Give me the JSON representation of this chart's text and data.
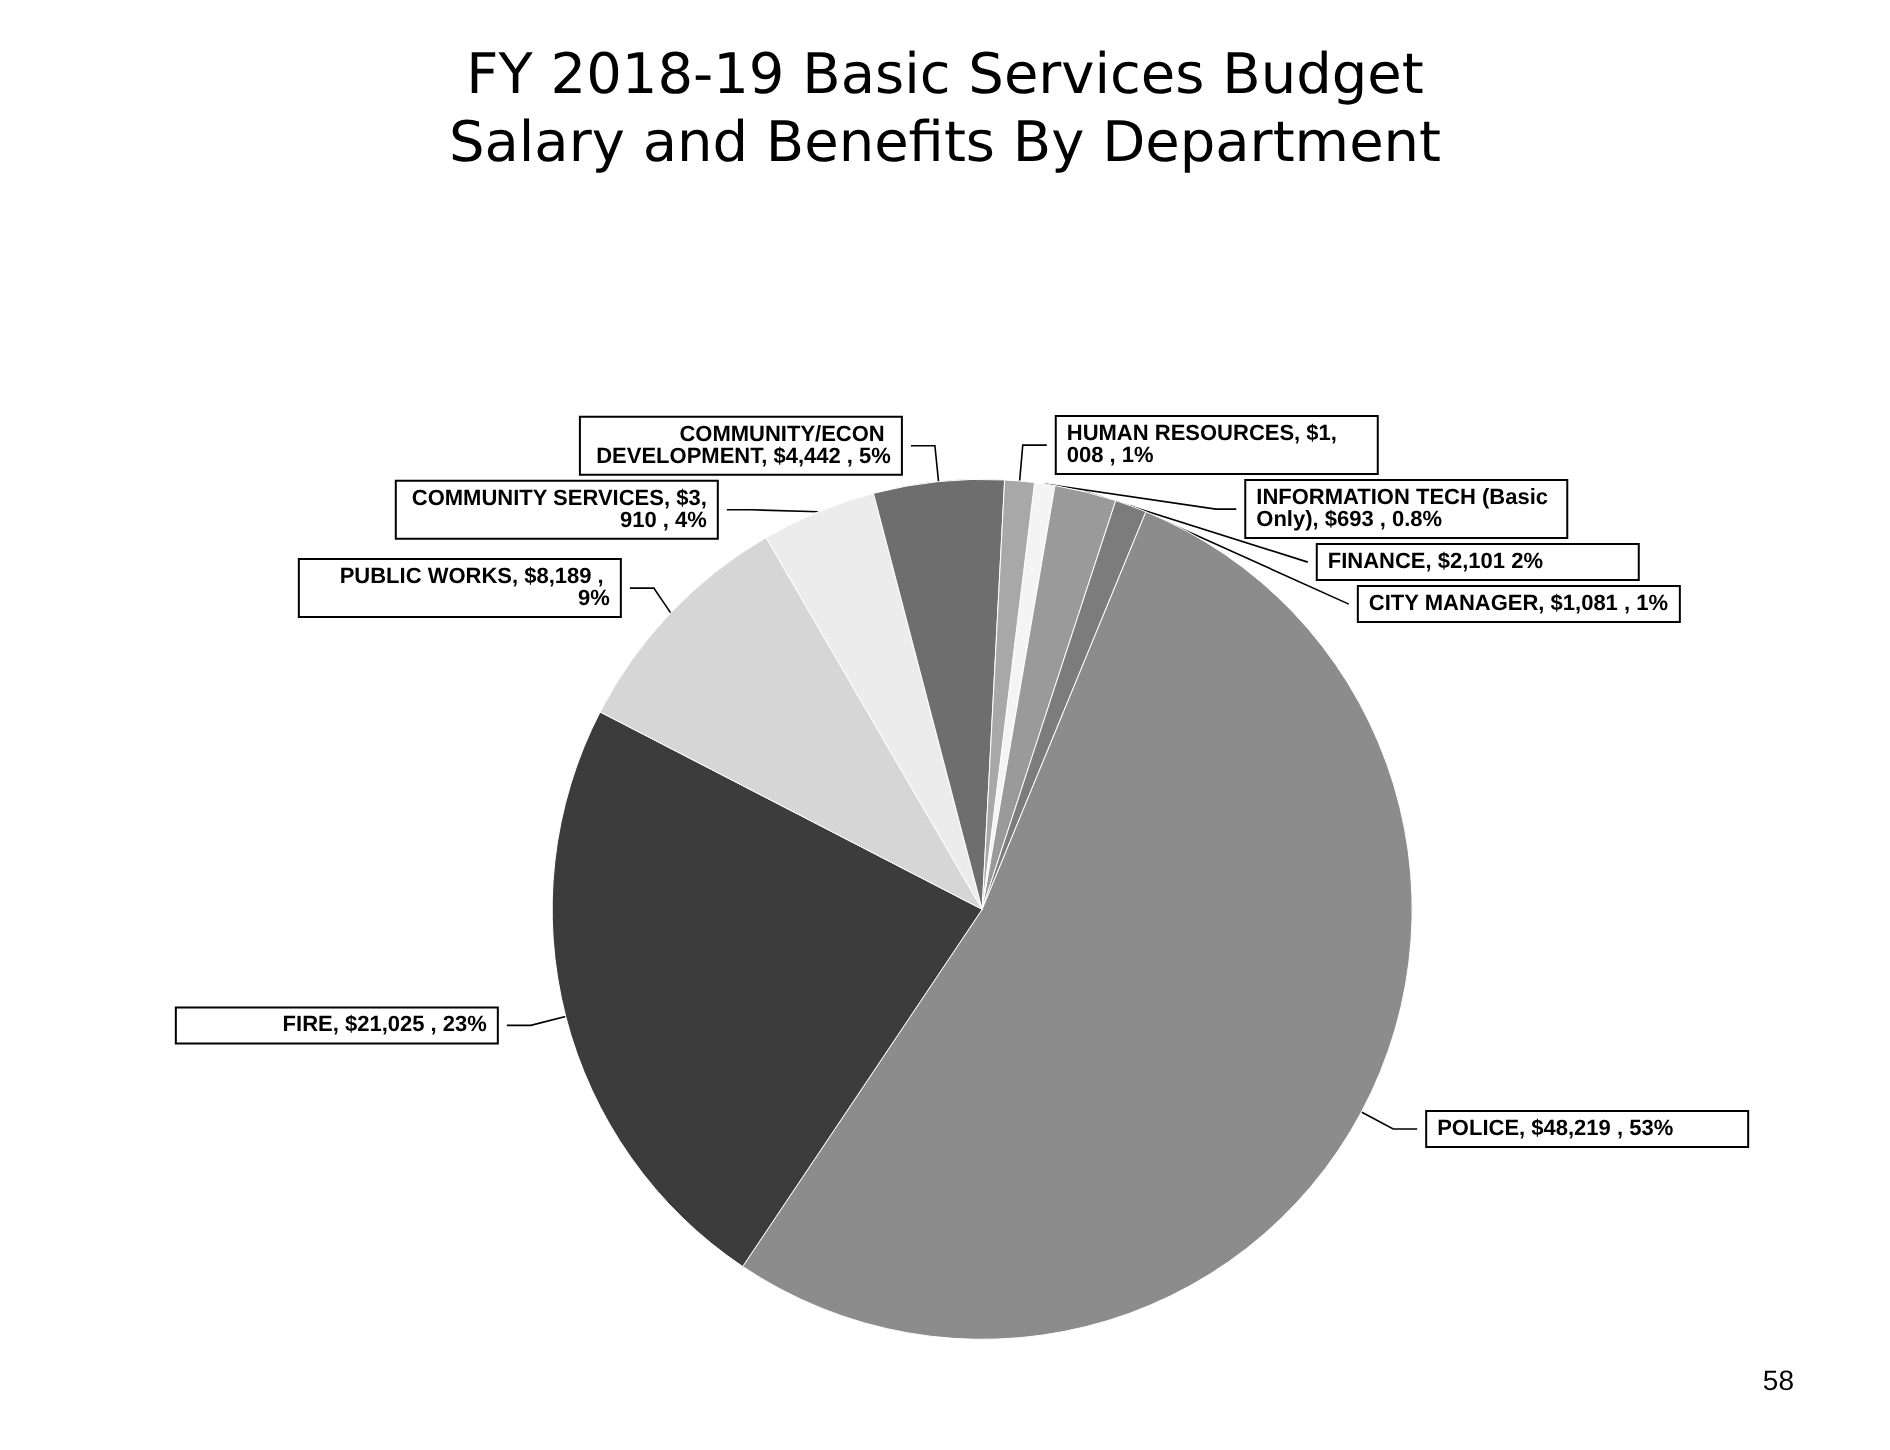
{
  "chart_data": {
    "type": "pie",
    "title": "FY 2018-19 Basic Services Budget",
    "subtitle": "Salary and Benefits By Department",
    "categories": [
      "INFORMATION TECH (Basic Only)",
      "FINANCE",
      "CITY MANAGER",
      "POLICE",
      "FIRE",
      "PUBLIC WORKS",
      "COMMUNITY SERVICES",
      "COMMUNITY/ECON DEVELOPMENT",
      "HUMAN RESOURCES"
    ],
    "values": [
      693,
      2101,
      1081,
      48219,
      21025,
      8189,
      3910,
      4442,
      1008
    ],
    "value_labels": [
      "$693 , 0.8%",
      "$2,101 2%",
      "$1,081 , 1%",
      "$48,219 , 53%",
      "$21,025 , 23%",
      "$8,189 , 9%",
      "$3,910 , 4%",
      "$4,442 , 5%",
      "$1,008 , 1%"
    ],
    "colors": [
      "#f4f4f4",
      "#9a9a9a",
      "#7c7c7c",
      "#8c8c8c",
      "#3c3c3c",
      "#d6d6d6",
      "#ececec",
      "#6e6e6e",
      "#a8a8a8"
    ],
    "annotations": [
      "58"
    ]
  }
}
